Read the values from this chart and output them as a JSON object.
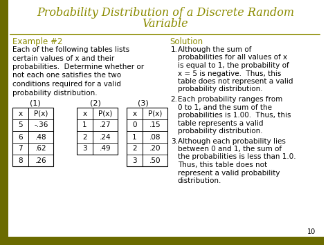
{
  "title_line1": "Probability Distribution of a Discrete Random",
  "title_line2": "Variable",
  "title_color": "#8B8B00",
  "example_label": "Example #2",
  "example_color": "#8B8B00",
  "solution_label": "Solution",
  "solution_color": "#8B8B00",
  "example_text_lines": [
    "Each of the following tables lists",
    "certain values of x and their",
    "probabilities.  Determine whether or",
    "not each one satisfies the two",
    "conditions required for a valid",
    "probability distribution."
  ],
  "table1_label": "(1)",
  "table2_label": "(2)",
  "table3_label": "(3)",
  "table1": [
    [
      "x",
      "P(x)"
    ],
    [
      "5",
      "-.36"
    ],
    [
      "6",
      ".48"
    ],
    [
      "7",
      ".62"
    ],
    [
      "8",
      ".26"
    ]
  ],
  "table2": [
    [
      "x",
      "P(x)"
    ],
    [
      "1",
      ".27"
    ],
    [
      "2",
      ".24"
    ],
    [
      "3",
      ".49"
    ]
  ],
  "table3": [
    [
      "x",
      "P(x)"
    ],
    [
      "0",
      ".15"
    ],
    [
      "1",
      ".08"
    ],
    [
      "2",
      ".20"
    ],
    [
      "3",
      ".50"
    ]
  ],
  "sol_prefix_color": "#000000",
  "solution_items": [
    [
      "Although the sum of",
      "probabilities for all values of x",
      "is equal to 1, the probability of",
      "x = 5 is negative.  Thus, this",
      "table does not represent a valid",
      "probability distribution."
    ],
    [
      "Each probability ranges from",
      "0 to 1, and the sum of the",
      "probabilities is 1.00.  Thus, this",
      "table represents a valid",
      "probability distribution."
    ],
    [
      "Although each probability lies",
      "between 0 and 1, the sum of",
      "the probabilities is less than 1.0.",
      "Thus, this table does not",
      "represent a valid probability",
      "distribution."
    ]
  ],
  "bg_color": "#FFFFFF",
  "left_strip_color": "#6B6B00",
  "bottom_strip_color": "#6B6B00",
  "text_color": "#000000",
  "slide_number": "10",
  "divider_color": "#8B8B00",
  "page_num_subscript": "10"
}
